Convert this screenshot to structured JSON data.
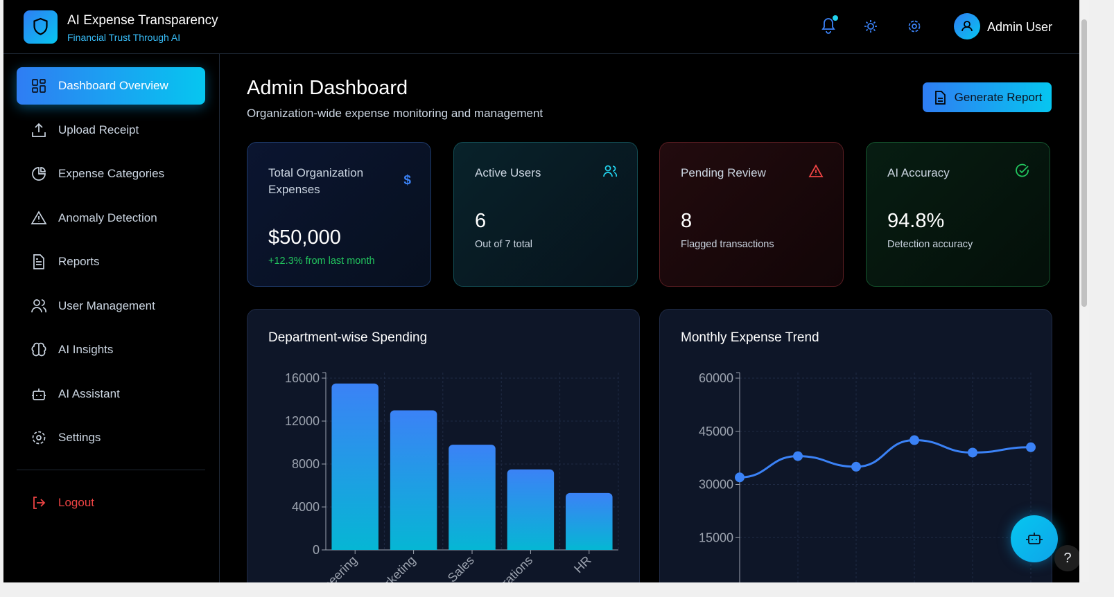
{
  "header": {
    "title": "AI Expense Transparency",
    "subtitle": "Financial Trust Through AI",
    "user": "Admin User"
  },
  "sidebar": {
    "items": [
      "Dashboard Overview",
      "Upload Receipt",
      "Expense Categories",
      "Anomaly Detection",
      "Reports",
      "User Management",
      "AI Insights",
      "AI Assistant",
      "Settings"
    ],
    "logout": "Logout"
  },
  "page": {
    "title": "Admin Dashboard",
    "subtitle": "Organization-wide expense monitoring and management",
    "button": "Generate Report"
  },
  "cards": [
    {
      "label": "Total Organization Expenses",
      "value": "$50,000",
      "note": "+12.3% from last month"
    },
    {
      "label": "Active Users",
      "value": "6",
      "note": "Out of 7 total"
    },
    {
      "label": "Pending Review",
      "value": "8",
      "note": "Flagged transactions"
    },
    {
      "label": "AI Accuracy",
      "value": "94.8%",
      "note": "Detection accuracy"
    }
  ],
  "chart_data": [
    {
      "type": "bar",
      "title": "Department-wise Spending",
      "categories": [
        "Engineering",
        "Marketing",
        "Sales",
        "Operations",
        "HR"
      ],
      "values": [
        15500,
        13000,
        9800,
        7500,
        5300
      ],
      "color": "#3b82f6",
      "ylim": [
        0,
        16000
      ],
      "yticks": [
        0,
        4000,
        8000,
        12000,
        16000
      ],
      "grid": true
    },
    {
      "type": "line",
      "title": "Monthly Expense Trend",
      "categories": [
        null,
        null,
        null,
        null,
        null,
        null
      ],
      "series": [
        {
          "name": null,
          "color": "#3b82f6",
          "values": [
            32000,
            38000,
            35000,
            42500,
            39000,
            40500
          ]
        }
      ],
      "ylim": [
        0,
        60000
      ],
      "yticks": [
        15000,
        30000,
        45000,
        60000
      ],
      "grid": true
    }
  ]
}
